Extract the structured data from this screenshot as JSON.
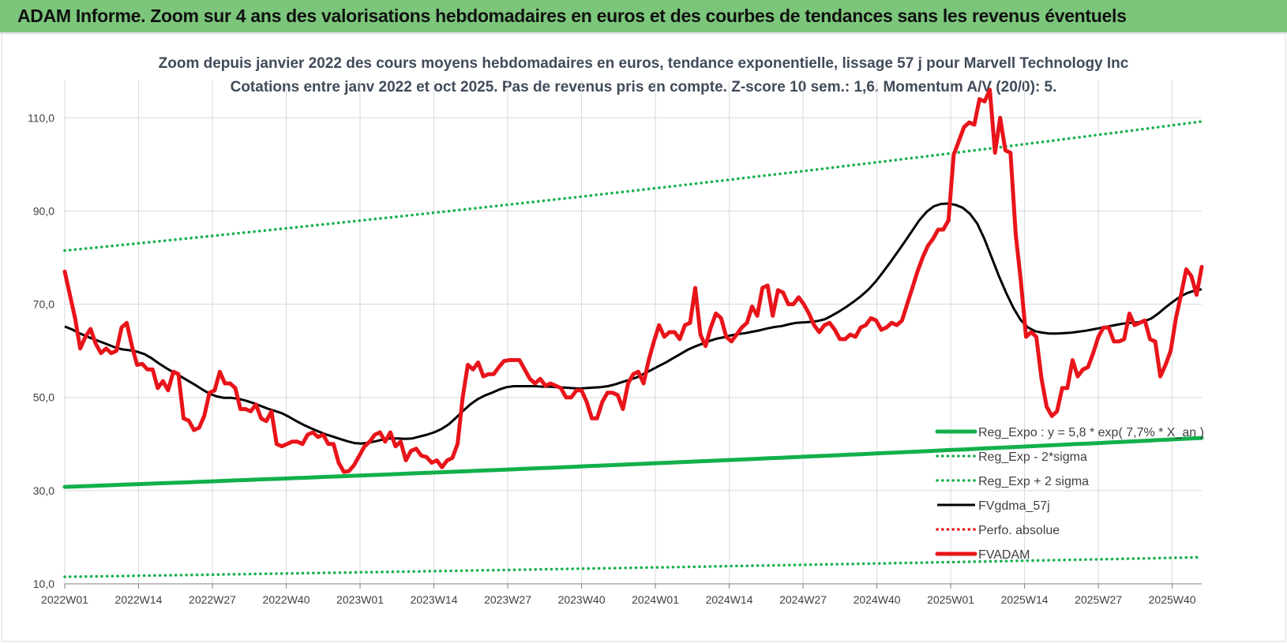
{
  "banner": {
    "title": "ADAM Informe. Zoom sur 4 ans des valorisations hebdomadaires en euros et des courbes de tendances sans les revenus éventuels"
  },
  "colors": {
    "banner_bg": "#7bc67b",
    "fvadam": "#e8141a",
    "fvgdma": "#000000",
    "regression": "#12b04a",
    "perfo": "#e8141a"
  },
  "chart_data": {
    "type": "line",
    "title_line1": "Zoom depuis janvier 2022 des cours moyens hebdomadaires en euros, tendance exponentielle, lissage 57 j pour Marvell Technology Inc",
    "title_line2": "Cotations entre janv 2022 et oct 2025. Pas de revenus pris en compte. Z-score 10 sem.: 1,6. Momentum A/V (20/0): 5.",
    "ylim": [
      10,
      118
    ],
    "y_ticks": [
      "10,0",
      "30,0",
      "50,0",
      "70,0",
      "90,0",
      "110,0"
    ],
    "y_tick_values": [
      10,
      30,
      50,
      70,
      90,
      110
    ],
    "x_ticks": [
      "2022W01",
      "2022W14",
      "2022W27",
      "2022W40",
      "2023W01",
      "2023W14",
      "2023W27",
      "2023W40",
      "2024W01",
      "2024W14",
      "2024W27",
      "2024W40",
      "2025W01",
      "2025W14",
      "2025W27",
      "2025W40"
    ],
    "grid": true,
    "legend_position": "bottom-right",
    "series": [
      {
        "name": "Reg_Expo : y = 5,8 * exp( 7,7% *  X_an )",
        "style": "solid-thick",
        "color": "#12b04a",
        "start": 30.8,
        "end": 41.3
      },
      {
        "name": "Reg_Exp - 2*sigma",
        "style": "dotted",
        "color": "#12b04a",
        "start": 11.5,
        "end": 15.7
      },
      {
        "name": "Reg_Exp + 2 sigma",
        "style": "dotted",
        "color": "#12b04a",
        "start": 81.5,
        "end": 109.2
      },
      {
        "name": "FVgdma_57j",
        "style": "solid",
        "color": "#000000",
        "values": [
          65.2,
          64.6,
          63.8,
          63.1,
          62.5,
          61.9,
          61.3,
          60.7,
          60.3,
          60.1,
          59.8,
          59.3,
          58.4,
          57.3,
          56.3,
          55.4,
          54.5,
          53.6,
          52.7,
          51.7,
          50.8,
          50.2,
          49.9,
          49.9,
          49.7,
          49.3,
          48.8,
          48.2,
          47.6,
          47.1,
          46.6,
          45.8,
          44.9,
          44.1,
          43.4,
          42.7,
          42.1,
          41.6,
          41.1,
          40.6,
          40.2,
          40.1,
          40.3,
          40.6,
          41.0,
          41.2,
          41.2,
          41.1,
          41.2,
          41.6,
          42.0,
          42.5,
          43.2,
          44.2,
          45.6,
          47.1,
          48.5,
          49.6,
          50.4,
          51.0,
          51.7,
          52.2,
          52.4,
          52.4,
          52.4,
          52.4,
          52.3,
          52.3,
          52.2,
          52.1,
          52.0,
          51.9,
          52.0,
          52.1,
          52.2,
          52.4,
          52.8,
          53.3,
          53.8,
          54.3,
          55.1,
          55.9,
          56.7,
          57.5,
          58.4,
          59.3,
          60.2,
          60.9,
          61.5,
          62.1,
          62.6,
          62.9,
          63.3,
          63.6,
          63.8,
          64.1,
          64.4,
          64.8,
          65.1,
          65.3,
          65.7,
          66.0,
          66.1,
          66.2,
          66.4,
          66.8,
          67.6,
          68.5,
          69.5,
          70.6,
          71.8,
          73.2,
          74.9,
          76.9,
          79.0,
          81.2,
          83.4,
          85.7,
          88.0,
          89.8,
          91.0,
          91.5,
          91.6,
          91.3,
          90.7,
          89.4,
          87.3,
          84.0,
          80.0,
          76.0,
          72.4,
          69.2,
          66.6,
          65.0,
          64.2,
          63.9,
          63.7,
          63.7,
          63.8,
          63.9,
          64.1,
          64.3,
          64.6,
          64.9,
          65.2,
          65.5,
          65.8,
          66.0,
          66.1,
          66.3,
          66.9,
          68.0,
          69.3,
          70.5,
          71.6,
          72.4,
          72.9,
          73.2
        ]
      },
      {
        "name": "Perfo. absolue",
        "style": "dotted",
        "color": "#e8141a",
        "values": []
      },
      {
        "name": "FVADAM",
        "style": "solid-thick",
        "color": "#e8141a",
        "values": [
          77.0,
          72.0,
          67.0,
          60.5,
          63.0,
          64.7,
          61.5,
          59.5,
          60.5,
          59.5,
          60.0,
          65.0,
          66.0,
          61.0,
          57.0,
          57.2,
          56.0,
          56.0,
          52.0,
          53.5,
          51.5,
          55.5,
          55.0,
          45.5,
          45.0,
          43.0,
          43.5,
          46.0,
          51.0,
          51.5,
          55.5,
          53.0,
          53.0,
          52.0,
          47.5,
          47.5,
          47.0,
          48.5,
          45.5,
          44.9,
          47.0,
          40.0,
          39.5,
          40.0,
          40.5,
          40.5,
          40.0,
          42.0,
          42.5,
          41.5,
          42.0,
          40.0,
          40.0,
          36.0,
          34.0,
          34.2,
          35.5,
          37.5,
          39.5,
          40.5,
          42.0,
          42.5,
          40.5,
          42.5,
          39.5,
          40.5,
          36.5,
          38.5,
          39.0,
          37.5,
          37.2,
          36.0,
          36.5,
          35.0,
          36.5,
          37.0,
          40.0,
          50.0,
          57.0,
          56.0,
          57.5,
          54.5,
          55.0,
          55.0,
          56.5,
          57.8,
          58.0,
          58.0,
          58.0,
          56.0,
          54.0,
          53.0,
          54.0,
          52.5,
          53.0,
          52.5,
          52.0,
          50.0,
          50.0,
          51.5,
          51.5,
          49.0,
          45.5,
          45.5,
          49.0,
          51.0,
          51.0,
          50.5,
          47.5,
          53.0,
          55.0,
          55.5,
          53.0,
          58.0,
          62.0,
          65.5,
          63.0,
          64.0,
          64.0,
          62.5,
          65.5,
          66.0,
          73.5,
          63.5,
          61.0,
          65.0,
          68.0,
          67.0,
          63.0,
          62.0,
          63.5,
          65.0,
          66.0,
          69.5,
          67.5,
          73.5,
          74.0,
          67.5,
          73.0,
          72.5,
          70.0,
          70.0,
          71.5,
          70.0,
          68.0,
          65.5,
          64.0,
          65.5,
          66.0,
          64.5,
          62.5,
          62.5,
          63.5,
          63.0,
          65.0,
          65.5,
          67.0,
          66.5,
          64.5,
          65.0,
          66.0,
          65.5,
          66.5,
          70.0,
          73.5,
          77.0,
          80.0,
          82.5,
          84.0,
          86.0,
          86.0,
          88.0,
          102.0,
          105.0,
          108.0,
          109.0,
          108.5,
          114.0,
          113.5,
          116.0,
          102.5,
          110.0,
          103.0,
          102.5,
          85.0,
          75.0,
          63.0,
          64.0,
          63.0,
          54.0,
          48.0,
          46.0,
          47.0,
          52.0,
          52.0,
          58.0,
          54.5,
          56.0,
          56.5,
          59.5,
          63.0,
          65.0,
          65.0,
          62.0,
          62.0,
          62.5,
          68.0,
          65.5,
          66.0,
          66.5,
          62.5,
          62.0,
          54.5,
          57.0,
          60.0,
          67.0,
          72.0,
          77.5,
          76.0,
          72.0,
          78.0
        ]
      }
    ]
  }
}
